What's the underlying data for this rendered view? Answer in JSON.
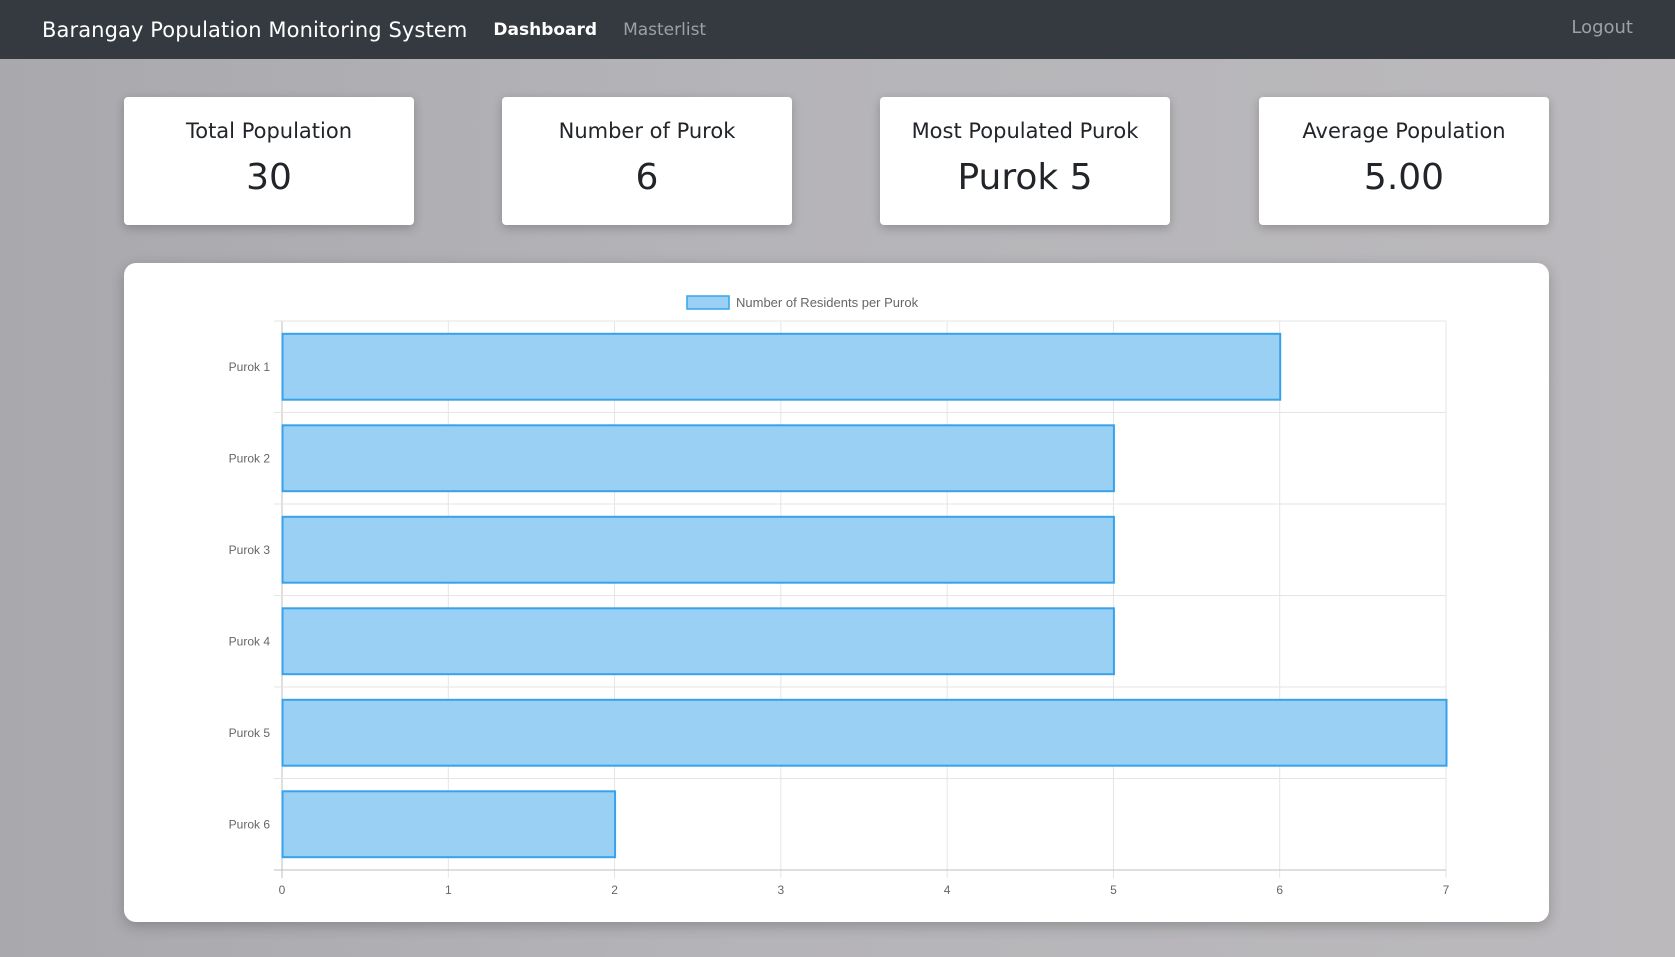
{
  "navbar": {
    "brand": "Barangay Population Monitoring System",
    "links": [
      "Dashboard",
      "Masterlist"
    ],
    "logout": "Logout"
  },
  "cards": [
    {
      "label": "Total Population",
      "value": "30"
    },
    {
      "label": "Number of Purok",
      "value": "6"
    },
    {
      "label": "Most Populated Purok",
      "value": "Purok 5"
    },
    {
      "label": "Average Population",
      "value": "5.00"
    }
  ],
  "colors": {
    "navbar": "#343a40",
    "bar_fill": "#9bd0f5",
    "bar_border": "#36a2eb"
  },
  "chart_data": {
    "type": "bar",
    "orientation": "horizontal",
    "categories": [
      "Purok 1",
      "Purok 2",
      "Purok 3",
      "Purok 4",
      "Purok 5",
      "Purok 6"
    ],
    "series": [
      {
        "name": "Number of Residents per Purok",
        "values": [
          6,
          5,
          5,
          5,
          7,
          2
        ]
      }
    ],
    "xlim": [
      0,
      7
    ],
    "xticks": [
      "0",
      "1",
      "2",
      "3",
      "4",
      "5",
      "6",
      "7"
    ],
    "grid": true,
    "legend": "top"
  }
}
